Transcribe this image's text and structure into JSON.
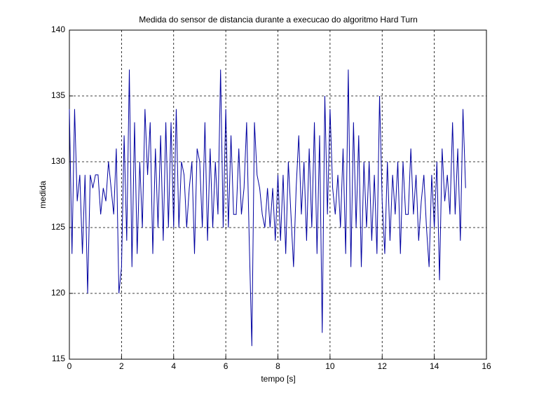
{
  "chart_data": {
    "type": "line",
    "title": "Medida do sensor de distancia durante a execucao do algoritmo Hard Turn",
    "x_label": "tempo [s]",
    "y_label": "medida",
    "xlim": [
      0,
      16
    ],
    "xticks": [
      0,
      2,
      4,
      6,
      8,
      10,
      12,
      14,
      16
    ],
    "ylim": [
      115,
      140
    ],
    "yticks": [
      115,
      120,
      125,
      130,
      135,
      140
    ],
    "grid": true,
    "x": [
      0.0,
      0.1,
      0.2,
      0.3,
      0.4,
      0.5,
      0.6,
      0.7,
      0.8,
      0.9,
      1.0,
      1.1,
      1.2,
      1.3,
      1.4,
      1.5,
      1.6,
      1.7,
      1.8,
      1.9,
      2.0,
      2.1,
      2.2,
      2.3,
      2.4,
      2.5,
      2.6,
      2.7,
      2.8,
      2.9,
      3.0,
      3.1,
      3.2,
      3.3,
      3.4,
      3.5,
      3.6,
      3.7,
      3.8,
      3.9,
      4.0,
      4.1,
      4.2,
      4.3,
      4.4,
      4.5,
      4.6,
      4.7,
      4.8,
      4.9,
      5.0,
      5.1,
      5.2,
      5.3,
      5.4,
      5.5,
      5.6,
      5.7,
      5.8,
      5.9,
      6.0,
      6.1,
      6.2,
      6.3,
      6.4,
      6.5,
      6.6,
      6.7,
      6.8,
      6.9,
      7.0,
      7.1,
      7.2,
      7.3,
      7.4,
      7.5,
      7.6,
      7.7,
      7.8,
      7.9,
      8.0,
      8.1,
      8.2,
      8.3,
      8.4,
      8.5,
      8.6,
      8.7,
      8.8,
      8.9,
      9.0,
      9.1,
      9.2,
      9.3,
      9.4,
      9.5,
      9.6,
      9.7,
      9.8,
      9.9,
      10.0,
      10.1,
      10.2,
      10.3,
      10.4,
      10.5,
      10.6,
      10.7,
      10.8,
      10.9,
      11.0,
      11.1,
      11.2,
      11.3,
      11.4,
      11.5,
      11.6,
      11.7,
      11.8,
      11.9,
      12.0,
      12.1,
      12.2,
      12.3,
      12.4,
      12.5,
      12.6,
      12.7,
      12.8,
      12.9,
      13.0,
      13.1,
      13.2,
      13.3,
      13.4,
      13.5,
      13.6,
      13.7,
      13.8,
      13.9,
      14.0,
      14.1,
      14.2,
      14.3,
      14.4,
      14.5,
      14.6,
      14.7,
      14.8,
      14.9,
      15.0,
      15.1,
      15.2
    ],
    "series": [
      {
        "color": "#0000a0",
        "values": [
          134,
          123,
          134,
          127,
          129,
          123,
          129,
          120,
          129,
          128,
          129,
          129,
          126,
          128,
          127,
          130,
          128,
          126,
          131,
          120,
          122,
          132,
          124,
          137,
          122,
          133,
          123,
          130,
          125,
          134,
          129,
          133,
          123,
          131,
          125,
          132,
          124,
          133,
          125,
          133,
          125,
          134,
          125,
          130,
          129,
          125,
          128,
          130,
          123,
          131,
          130,
          125,
          133,
          124,
          131,
          125,
          130,
          126,
          137,
          125,
          134,
          125,
          132,
          126,
          126,
          131,
          126,
          128,
          133,
          124,
          116,
          133,
          129,
          128,
          126,
          125,
          128,
          125,
          128,
          124,
          129,
          124,
          129,
          123,
          130,
          126,
          122,
          128,
          132,
          126,
          130,
          124,
          131,
          125,
          133,
          123,
          132,
          117,
          135,
          126,
          134,
          128,
          126,
          129,
          125,
          131,
          123,
          137,
          122,
          133,
          125,
          132,
          122,
          130,
          125,
          130,
          124,
          129,
          123,
          135,
          127,
          123,
          130,
          124,
          129,
          126,
          130,
          123,
          130,
          126,
          126,
          131,
          126,
          129,
          124,
          127,
          129,
          125,
          122,
          129,
          125,
          130,
          121,
          131,
          127,
          129,
          126,
          133,
          126,
          131,
          124,
          134,
          128
        ]
      }
    ]
  }
}
